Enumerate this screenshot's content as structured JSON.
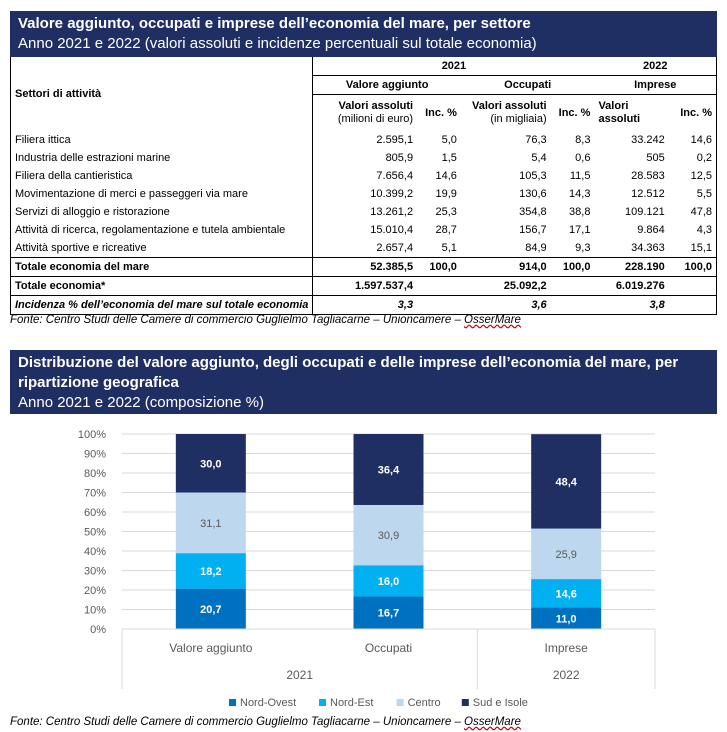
{
  "table_section": {
    "title": "Valore aggiunto, occupati e imprese dell’economia del mare, per settore",
    "subtitle": "Anno 2021 e 2022 (valori assoluti e incidenze percentuali sul totale economia)",
    "year_2021": "2021",
    "year_2022": "2022",
    "row_header": "Settori di attività",
    "group_va": "Valore aggiunto",
    "group_occ": "Occupati",
    "group_imp": "Imprese",
    "col_va_abs_1": "Valori assoluti",
    "col_va_abs_2": "(milioni di euro)",
    "col_occ_abs_1": "Valori assoluti",
    "col_occ_abs_2": "(in migliaia)",
    "col_imp_abs_1": "Valori",
    "col_imp_abs_2": "assoluti",
    "col_inc": "Inc. %",
    "rows": [
      {
        "label": "Filiera ittica",
        "va": "2.595,1",
        "va_inc": "5,0",
        "occ": "76,3",
        "occ_inc": "8,3",
        "imp": "33.242",
        "imp_inc": "14,6"
      },
      {
        "label": "Industria delle estrazioni marine",
        "va": "805,9",
        "va_inc": "1,5",
        "occ": "5,4",
        "occ_inc": "0,6",
        "imp": "505",
        "imp_inc": "0,2"
      },
      {
        "label": "Filiera della cantieristica",
        "va": "7.656,4",
        "va_inc": "14,6",
        "occ": "105,3",
        "occ_inc": "11,5",
        "imp": "28.583",
        "imp_inc": "12,5"
      },
      {
        "label": "Movimentazione di merci e passeggeri via mare",
        "va": "10.399,2",
        "va_inc": "19,9",
        "occ": "130,6",
        "occ_inc": "14,3",
        "imp": "12.512",
        "imp_inc": "5,5"
      },
      {
        "label": "Servizi di alloggio e ristorazione",
        "va": "13.261,2",
        "va_inc": "25,3",
        "occ": "354,8",
        "occ_inc": "38,8",
        "imp": "109.121",
        "imp_inc": "47,8"
      },
      {
        "label": "Attività di ricerca, regolamentazione e tutela ambientale",
        "va": "15.010,4",
        "va_inc": "28,7",
        "occ": "156,7",
        "occ_inc": "17,1",
        "imp": "9.864",
        "imp_inc": "4,3"
      },
      {
        "label": "Attività sportive e ricreative",
        "va": "2.657,4",
        "va_inc": "5,1",
        "occ": "84,9",
        "occ_inc": "9,3",
        "imp": "34.363",
        "imp_inc": "15,1"
      }
    ],
    "total_sea": {
      "label": "Totale economia del mare",
      "va": "52.385,5",
      "va_inc": "100,0",
      "occ": "914,0",
      "occ_inc": "100,0",
      "imp": "228.190",
      "imp_inc": "100,0"
    },
    "total_economy": {
      "label": "Totale economia*",
      "va": "1.597.537,4",
      "occ": "25.092,2",
      "imp": "6.019.276"
    },
    "incidence": {
      "label": "Incidenza % dell’economia del mare sul totale economia",
      "va": "3,3",
      "occ": "3,6",
      "imp": "3,8"
    },
    "source_prefix": "Fonte: Centro Studi delle Camere di commercio Guglielmo Tagliacarne – Unioncamere – ",
    "source_tail": "OsserMare"
  },
  "chart_section": {
    "title_line1": "Distribuzione del valore aggiunto, degli occupati e delle imprese dell’economia del mare, per",
    "title_line2": "ripartizione geografica",
    "subtitle": "Anno 2021 e 2022 (composizione %)",
    "source_prefix": "Fonte: Centro Studi delle Camere di commercio Guglielmo Tagliacarne – Unioncamere – ",
    "source_tail": "OsserMare"
  },
  "chart_data": {
    "type": "bar",
    "stacked": true,
    "categories": [
      "Valore aggiunto",
      "Occupati",
      "Imprese"
    ],
    "groups": [
      {
        "label": "2021",
        "categories": [
          "Valore aggiunto",
          "Occupati"
        ]
      },
      {
        "label": "2022",
        "categories": [
          "Imprese"
        ]
      }
    ],
    "ylim": [
      0,
      100
    ],
    "yticks": [
      "0%",
      "10%",
      "20%",
      "30%",
      "40%",
      "50%",
      "60%",
      "70%",
      "80%",
      "90%",
      "100%"
    ],
    "grid": true,
    "legend_position": "bottom",
    "series": [
      {
        "name": "Nord-Ovest",
        "color": "#0070c0",
        "values": [
          20.7,
          16.7,
          11.0
        ],
        "labels": [
          "20,7",
          "16,7",
          "11,0"
        ],
        "label_color": "#ffffff"
      },
      {
        "name": "Nord-Est",
        "color": "#00b0f0",
        "values": [
          18.2,
          16.0,
          14.6
        ],
        "labels": [
          "18,2",
          "16,0",
          "14,6"
        ],
        "label_color": "#ffffff"
      },
      {
        "name": "Centro",
        "color": "#bdd7ee",
        "values": [
          31.1,
          30.9,
          25.9
        ],
        "labels": [
          "31,1",
          "30,9",
          "25,9"
        ],
        "label_color": "#595959"
      },
      {
        "name": "Sud e Isole",
        "color": "#1f2f63",
        "values": [
          30.0,
          36.4,
          48.4
        ],
        "labels": [
          "30,0",
          "36,4",
          "48,4"
        ],
        "label_color": "#ffffff"
      }
    ]
  }
}
